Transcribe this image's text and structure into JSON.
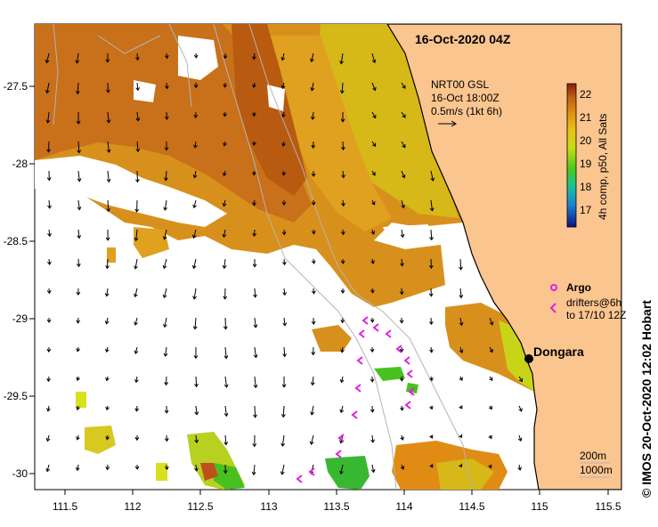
{
  "map": {
    "title": "16-Oct-2020 04Z",
    "current_info": {
      "line1": "NRT00 GSL",
      "line2": "16-Oct 18:00Z",
      "line3": "0.5m/s (1kt 6h)"
    },
    "colorbar": {
      "label": "4h comp, p50, All Sats",
      "ticks": [
        "22",
        "21",
        "20",
        "19",
        "18",
        "17"
      ],
      "range": [
        16.5,
        22.5
      ],
      "colors": [
        "#0a1280",
        "#1c7fd0",
        "#18c39a",
        "#46c81e",
        "#c8dc14",
        "#e8c018",
        "#e08c14",
        "#c06410",
        "#8a1c0c"
      ]
    },
    "legend": {
      "argo_label": "Argo",
      "drifters_line1": "drifters@6h",
      "drifters_line2": "to 17/10 12Z"
    },
    "place": {
      "name": "Dongara"
    },
    "depth_legend": {
      "line1": "200m",
      "line2": "1000m"
    },
    "credit": "© IMOS 20-Oct-2020 12:02 Hobart",
    "x_ticks": [
      "111.5",
      "112",
      "112.5",
      "113",
      "113.5",
      "114",
      "114.5",
      "115",
      "115.5"
    ],
    "y_ticks": [
      "-27.5",
      "-28",
      "-28.5",
      "-29",
      "-29.5",
      "-30"
    ],
    "colors": {
      "land": "#fbc590",
      "coast": "#000000",
      "ocean_nodata": "#ffffff",
      "isobath": "#b4b4b4",
      "drifter": "#e020e0"
    }
  }
}
